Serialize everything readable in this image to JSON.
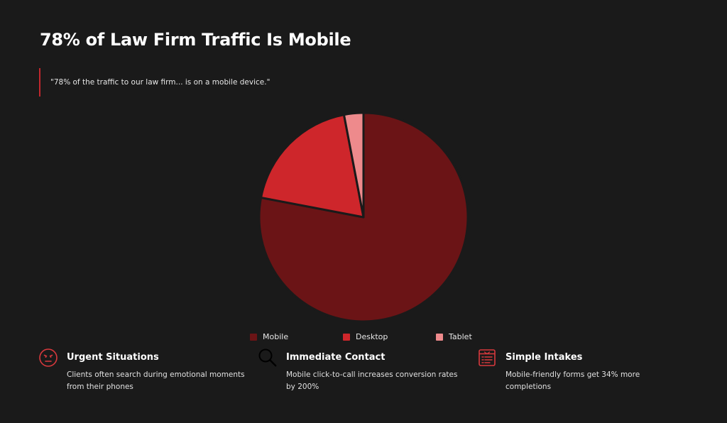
{
  "header": {
    "title": "78% of Law Firm Traffic Is Mobile",
    "quote": "\"78% of the traffic to our law firm... is on a mobile device.\""
  },
  "chart_data": {
    "type": "pie",
    "categories": [
      "Mobile",
      "Desktop",
      "Tablet"
    ],
    "values": [
      78,
      19,
      3
    ],
    "colors": [
      "#6b1416",
      "#ce262b",
      "#ee8a8c"
    ],
    "title": "",
    "legend_position": "bottom"
  },
  "features": [
    {
      "icon": "face-icon",
      "title": "Urgent Situations",
      "text": "Clients often search during emotional moments from their phones"
    },
    {
      "icon": "search-icon",
      "title": "Immediate Contact",
      "text": "Mobile click-to-call increases conversion rates by 200%"
    },
    {
      "icon": "form-icon",
      "title": "Simple Intakes",
      "text": "Mobile-friendly forms get 34% more completions"
    }
  ]
}
